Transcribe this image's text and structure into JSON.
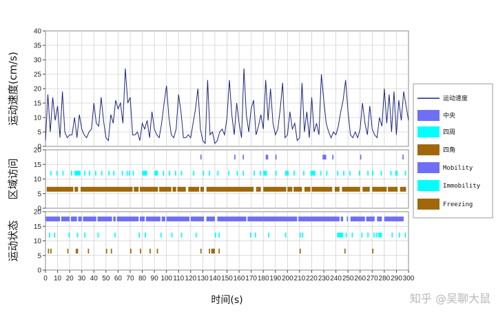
{
  "chart_data": [
    {
      "type": "line",
      "ylabel": "运动速度(cm/s)",
      "ylim": [
        0,
        40
      ],
      "yticks": [
        0,
        5,
        10,
        15,
        20,
        25,
        30,
        35,
        40
      ],
      "xlim": [
        0,
        300
      ],
      "grid": true,
      "series": [
        {
          "name": "运动速度",
          "color": "#1a237e",
          "x": [
            0,
            2,
            4,
            6,
            8,
            10,
            12,
            14,
            16,
            18,
            20,
            22,
            24,
            26,
            28,
            30,
            32,
            34,
            36,
            38,
            40,
            42,
            44,
            46,
            48,
            50,
            52,
            54,
            56,
            58,
            60,
            62,
            64,
            66,
            68,
            70,
            72,
            74,
            76,
            78,
            80,
            82,
            84,
            86,
            88,
            90,
            92,
            94,
            96,
            98,
            100,
            102,
            104,
            106,
            108,
            110,
            112,
            114,
            116,
            118,
            120,
            122,
            124,
            126,
            128,
            130,
            132,
            134,
            136,
            138,
            140,
            142,
            144,
            146,
            148,
            150,
            152,
            154,
            156,
            158,
            160,
            162,
            164,
            166,
            168,
            170,
            172,
            174,
            176,
            178,
            180,
            182,
            184,
            186,
            188,
            190,
            192,
            194,
            196,
            198,
            200,
            202,
            204,
            206,
            208,
            210,
            212,
            214,
            216,
            218,
            220,
            222,
            224,
            226,
            228,
            230,
            232,
            234,
            236,
            238,
            240,
            242,
            244,
            246,
            248,
            250,
            252,
            254,
            256,
            258,
            260,
            262,
            264,
            266,
            268,
            270,
            272,
            274,
            276,
            278,
            280,
            282,
            284,
            286,
            288,
            290,
            292,
            294,
            296,
            298,
            300
          ],
          "y": [
            2,
            18,
            5,
            17,
            9,
            14,
            3,
            19,
            5,
            3,
            4,
            4,
            10,
            3,
            11,
            6,
            4,
            3,
            5,
            6,
            15,
            8,
            7,
            17,
            9,
            3,
            2,
            11,
            8,
            16,
            13,
            15,
            8,
            27,
            15,
            17,
            4,
            4,
            5,
            2,
            8,
            6,
            9,
            3,
            12,
            6,
            4,
            3,
            8,
            15,
            21,
            10,
            4,
            3,
            6,
            18,
            12,
            3,
            3,
            4,
            3,
            8,
            13,
            20,
            6,
            2,
            1,
            23,
            4,
            5,
            1,
            2,
            5,
            6,
            4,
            10,
            23,
            11,
            4,
            15,
            8,
            3,
            27,
            11,
            5,
            13,
            16,
            4,
            7,
            11,
            6,
            23,
            9,
            20,
            8,
            4,
            6,
            13,
            22,
            3,
            4,
            12,
            6,
            8,
            2,
            3,
            22,
            5,
            12,
            3,
            17,
            5,
            8,
            4,
            25,
            16,
            8,
            5,
            3,
            5,
            4,
            7,
            12,
            16,
            23,
            12,
            4,
            3,
            5,
            3,
            6,
            15,
            8,
            4,
            14,
            6,
            4,
            3,
            10,
            7,
            20,
            8,
            18,
            5,
            19,
            4,
            16,
            9,
            19,
            14,
            9
          ]
        }
      ]
    },
    {
      "type": "bar",
      "ylabel": "区域访问",
      "ylim": [
        0,
        20
      ],
      "yticks": [
        0,
        5,
        10,
        15,
        20
      ],
      "xlim": [
        0,
        300
      ],
      "grid": true,
      "series": [
        {
          "name": "中央",
          "level": 17.5,
          "color": "#6f6ff5",
          "intervals": [
            [
              128,
              129
            ],
            [
              156,
              157
            ],
            [
              163,
              164
            ],
            [
              182,
              184
            ],
            [
              190,
              191
            ],
            [
              229,
              232
            ],
            [
              237,
              238
            ],
            [
              260,
              261
            ],
            [
              295,
              296
            ]
          ]
        },
        {
          "name": "四周",
          "level": 12,
          "color": "#00ffff",
          "intervals": [
            [
              4,
              5
            ],
            [
              9,
              10
            ],
            [
              14,
              15
            ],
            [
              21,
              22
            ],
            [
              24,
              29
            ],
            [
              32,
              33
            ],
            [
              36,
              37
            ],
            [
              41,
              42
            ],
            [
              46,
              47
            ],
            [
              52,
              53
            ],
            [
              56,
              57
            ],
            [
              63,
              64
            ],
            [
              67,
              68
            ],
            [
              69,
              70
            ],
            [
              72,
              73
            ],
            [
              80,
              84
            ],
            [
              90,
              93
            ],
            [
              97,
              98
            ],
            [
              102,
              103
            ],
            [
              107,
              108
            ],
            [
              112,
              113
            ],
            [
              122,
              123
            ],
            [
              130,
              131
            ],
            [
              135,
              136
            ],
            [
              142,
              143
            ],
            [
              151,
              152
            ],
            [
              158,
              159
            ],
            [
              163,
              164
            ],
            [
              172,
              173
            ],
            [
              177,
              178
            ],
            [
              180,
              183
            ],
            [
              190,
              191
            ],
            [
              198,
              201
            ],
            [
              205,
              206
            ],
            [
              213,
              214
            ],
            [
              219,
              223
            ],
            [
              227,
              228
            ],
            [
              232,
              233
            ],
            [
              241,
              242
            ],
            [
              246,
              247
            ],
            [
              251,
              252
            ],
            [
              259,
              260
            ],
            [
              266,
              267
            ],
            [
              270,
              271
            ],
            [
              277,
              278
            ],
            [
              285,
              286
            ],
            [
              289,
              291
            ],
            [
              297,
              298
            ]
          ]
        },
        {
          "name": "四角",
          "level": 6.5,
          "color": "#a0680a",
          "intervals": [
            [
              1,
              23
            ],
            [
              24,
              27
            ],
            [
              29,
              72
            ],
            [
              73,
              77
            ],
            [
              78,
              93
            ],
            [
              94,
              104
            ],
            [
              105,
              108
            ],
            [
              109,
              116
            ],
            [
              118,
              127
            ],
            [
              128,
              131
            ],
            [
              133,
              172
            ],
            [
              174,
              178
            ],
            [
              180,
              199
            ],
            [
              200,
              204
            ],
            [
              205,
              212
            ],
            [
              214,
              219
            ],
            [
              220,
              237
            ],
            [
              239,
              243
            ],
            [
              245,
              260
            ],
            [
              262,
              268
            ],
            [
              270,
              282
            ],
            [
              283,
              291
            ],
            [
              293,
              298
            ]
          ]
        }
      ]
    },
    {
      "type": "bar",
      "ylabel": "运动状态",
      "ylim": [
        0,
        20
      ],
      "yticks": [
        0,
        5,
        10,
        15,
        20
      ],
      "xlim": [
        0,
        300
      ],
      "xticks": [
        0,
        10,
        20,
        30,
        40,
        50,
        60,
        70,
        80,
        90,
        100,
        110,
        120,
        130,
        140,
        150,
        160,
        170,
        180,
        190,
        200,
        210,
        220,
        230,
        240,
        250,
        260,
        270,
        280,
        290,
        300
      ],
      "xlabel": "时间(s)",
      "grid": true,
      "series": [
        {
          "name": "Mobility",
          "level": 17.5,
          "color": "#6f6ff5",
          "intervals": [
            [
              0,
              1
            ],
            [
              1,
              12
            ],
            [
              13,
              20
            ],
            [
              21,
              26
            ],
            [
              27,
              30
            ],
            [
              31,
              42
            ],
            [
              43,
              55
            ],
            [
              56,
              58
            ],
            [
              59,
              77
            ],
            [
              78,
              82
            ],
            [
              83,
              95
            ],
            [
              96,
              99
            ],
            [
              100,
              119
            ],
            [
              120,
              131
            ],
            [
              133,
              140
            ],
            [
              142,
              166
            ],
            [
              167,
              208
            ],
            [
              209,
              243
            ],
            [
              244,
              246
            ],
            [
              249,
              250
            ],
            [
              252,
              264
            ],
            [
              265,
              272
            ],
            [
              274,
              278
            ],
            [
              280,
              296
            ]
          ]
        },
        {
          "name": "Immobility",
          "level": 12,
          "color": "#00ffff",
          "intervals": [
            [
              3,
              4
            ],
            [
              7,
              8
            ],
            [
              19,
              20
            ],
            [
              26,
              27
            ],
            [
              32,
              33
            ],
            [
              43,
              44
            ],
            [
              57,
              58
            ],
            [
              77,
              78
            ],
            [
              82,
              83
            ],
            [
              95,
              96
            ],
            [
              104,
              105
            ],
            [
              112,
              113
            ],
            [
              124,
              125
            ],
            [
              140,
              141
            ],
            [
              143,
              144
            ],
            [
              169,
              170
            ],
            [
              173,
              174
            ],
            [
              184,
              185
            ],
            [
              198,
              199
            ],
            [
              210,
              211
            ],
            [
              212,
              213
            ],
            [
              241,
              246
            ],
            [
              248,
              249
            ],
            [
              253,
              254
            ],
            [
              261,
              262
            ],
            [
              266,
              267
            ],
            [
              271,
              272
            ],
            [
              273,
              274
            ],
            [
              275,
              278
            ],
            [
              286,
              287
            ],
            [
              292,
              293
            ],
            [
              297,
              298
            ]
          ]
        },
        {
          "name": "Freezing",
          "level": 6.5,
          "color": "#a0680a",
          "intervals": [
            [
              2,
              3
            ],
            [
              4,
              5
            ],
            [
              18,
              19
            ],
            [
              25,
              26
            ],
            [
              26,
              27
            ],
            [
              35,
              36
            ],
            [
              50,
              51
            ],
            [
              54,
              55
            ],
            [
              70,
              71
            ],
            [
              78,
              79
            ],
            [
              86,
              87
            ],
            [
              92,
              93
            ],
            [
              128,
              129
            ],
            [
              135,
              136
            ],
            [
              137,
              140
            ],
            [
              143,
              144
            ],
            [
              210,
              211
            ],
            [
              247,
              248
            ],
            [
              270,
              271
            ]
          ]
        }
      ]
    }
  ],
  "watermark": "知乎 @吴聊大鼠"
}
